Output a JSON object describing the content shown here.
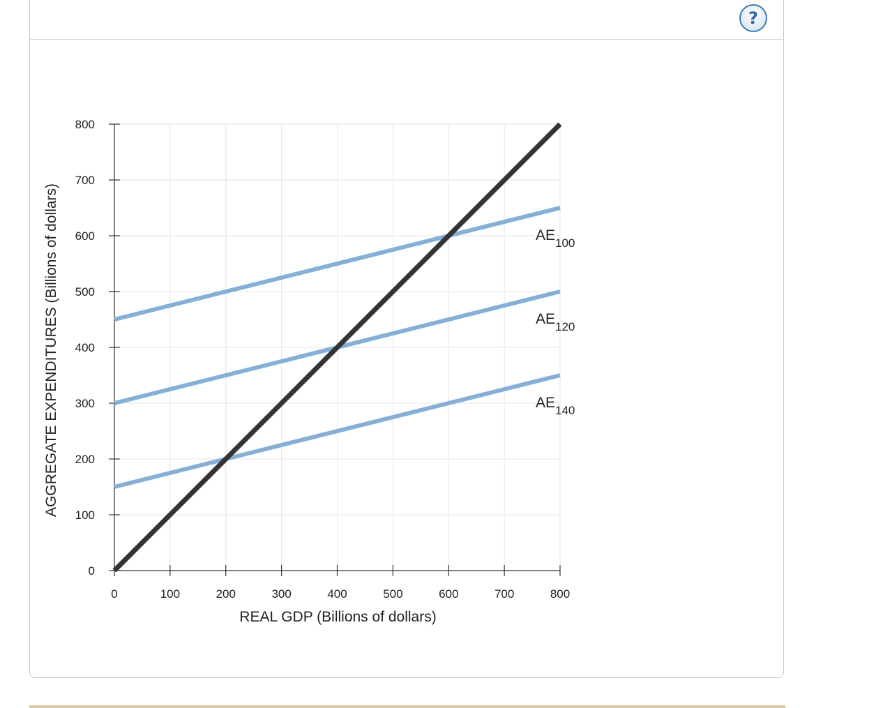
{
  "help": {
    "label": "?"
  },
  "chart_data": {
    "type": "line",
    "xlabel": "REAL GDP (Billions of dollars)",
    "ylabel": "AGGREGATE EXPENDITURES (Billions of dollars)",
    "xlim": [
      0,
      800
    ],
    "ylim": [
      0,
      800
    ],
    "xticks": [
      0,
      100,
      200,
      300,
      400,
      500,
      600,
      700,
      800
    ],
    "yticks": [
      0,
      100,
      200,
      300,
      400,
      500,
      600,
      700,
      800
    ],
    "grid": true,
    "series": [
      {
        "label_main": "AE",
        "label_sub": "100",
        "x": [
          0,
          800
        ],
        "y": [
          450,
          650
        ],
        "color": "#86afd6"
      },
      {
        "label_main": "AE",
        "label_sub": "120",
        "x": [
          0,
          800
        ],
        "y": [
          300,
          500
        ],
        "color": "#86afd6"
      },
      {
        "label_main": "AE",
        "label_sub": "140",
        "x": [
          0,
          800
        ],
        "y": [
          150,
          350
        ],
        "color": "#86afd6"
      },
      {
        "x": [
          0,
          800
        ],
        "y": [
          0,
          800
        ],
        "color": "#333333"
      }
    ]
  }
}
